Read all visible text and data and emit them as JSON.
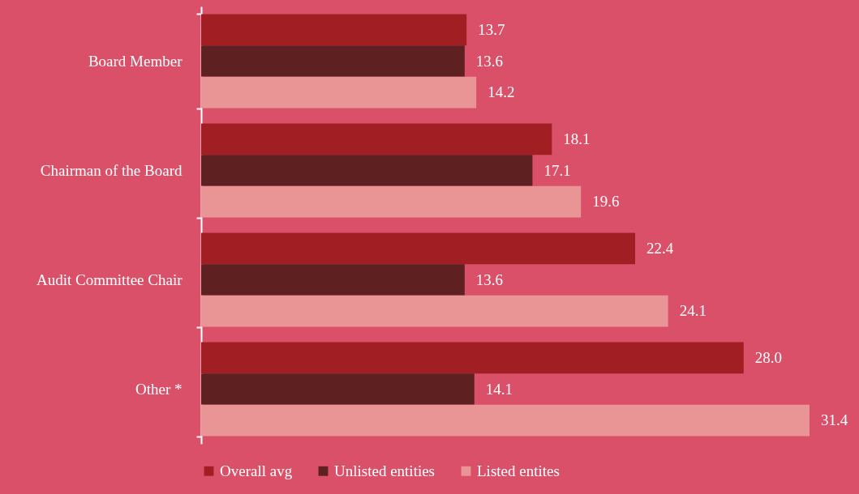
{
  "chart_data": {
    "type": "bar",
    "orientation": "horizontal",
    "categories": [
      "Board Member",
      "Chairman of the Board",
      "Audit Committee Chair",
      "Other *"
    ],
    "series": [
      {
        "name": "Overall avg",
        "color": "#a11f22",
        "values": [
          13.7,
          18.1,
          22.4,
          28.0
        ],
        "value_labels": [
          "13.7",
          "18.1",
          "22.4",
          "28.0"
        ]
      },
      {
        "name": "Unlisted entities",
        "color": "#5e2020",
        "values": [
          13.6,
          17.1,
          13.6,
          14.1
        ],
        "value_labels": [
          "13.6",
          "17.1",
          "13.6",
          "14.1"
        ]
      },
      {
        "name": "Listed entites",
        "color": "#e99595",
        "values": [
          14.2,
          19.6,
          24.1,
          31.4
        ],
        "value_labels": [
          "14.2",
          "19.6",
          "24.1",
          "31.4"
        ]
      }
    ],
    "legend": "bottom",
    "grid": false
  }
}
